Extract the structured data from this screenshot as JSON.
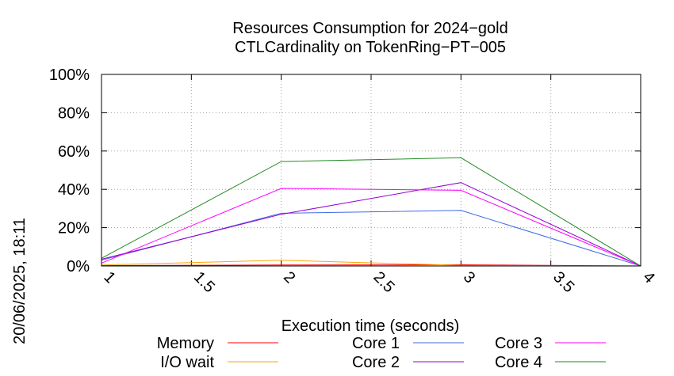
{
  "chart_data": {
    "type": "line",
    "title": [
      "Resources Consumption for 2024−gold",
      "CTLCardinality on TokenRing−PT−005"
    ],
    "xlabel": "Execution time (seconds)",
    "ylabel": "",
    "side_label": "20/06/2025, 18:11",
    "xlim": [
      1,
      4
    ],
    "ylim": [
      0,
      100
    ],
    "x_ticks": [
      "1",
      "1.5",
      "2",
      "2.5",
      "3",
      "3.5",
      "4"
    ],
    "y_ticks": [
      "0%",
      "20%",
      "40%",
      "60%",
      "80%",
      "100%"
    ],
    "grid": true,
    "legend_position": "bottom",
    "series": [
      {
        "name": "Memory",
        "color": "#ff0000",
        "x": [
          1,
          2,
          3,
          4
        ],
        "y": [
          0.2,
          0.5,
          0.6,
          0
        ]
      },
      {
        "name": "I/O wait",
        "color": "#ffa500",
        "x": [
          1,
          2,
          3,
          4
        ],
        "y": [
          0.5,
          3,
          0.3,
          0
        ]
      },
      {
        "name": "Core 1",
        "color": "#4169e1",
        "x": [
          1,
          2,
          3,
          4
        ],
        "y": [
          3,
          27.5,
          29,
          0
        ]
      },
      {
        "name": "Core 2",
        "color": "#9400d3",
        "x": [
          1,
          2,
          3,
          4
        ],
        "y": [
          3.5,
          27,
          43.5,
          0
        ]
      },
      {
        "name": "Core 3",
        "color": "#ff00ff",
        "x": [
          1,
          2,
          3,
          4
        ],
        "y": [
          1.5,
          40.5,
          39.5,
          0
        ]
      },
      {
        "name": "Core 4",
        "color": "#228b22",
        "x": [
          1,
          2,
          3,
          4
        ],
        "y": [
          4,
          54.5,
          56.5,
          0
        ]
      }
    ]
  }
}
